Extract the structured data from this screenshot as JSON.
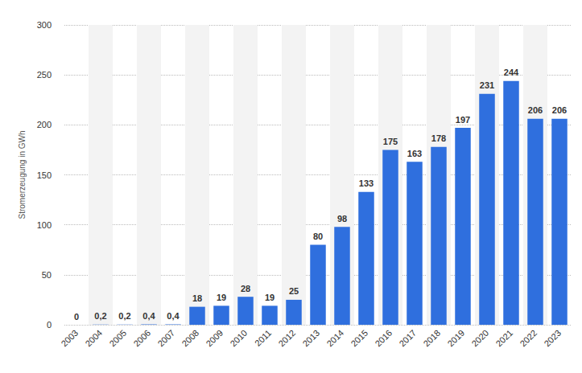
{
  "chart_data": {
    "type": "bar",
    "categories": [
      "2003",
      "2004",
      "2005",
      "2006",
      "2007",
      "2008",
      "2009",
      "2010",
      "2011",
      "2012",
      "2013",
      "2014",
      "2015",
      "2016",
      "2017",
      "2018",
      "2019",
      "2020",
      "2021",
      "2022",
      "2023"
    ],
    "values": [
      0,
      0.2,
      0.2,
      0.4,
      0.4,
      18,
      19,
      28,
      19,
      25,
      80,
      98,
      133,
      175,
      163,
      178,
      197,
      231,
      244,
      206,
      206
    ],
    "value_labels": [
      "0",
      "0,2",
      "0,2",
      "0,4",
      "0,4",
      "18",
      "19",
      "28",
      "19",
      "25",
      "80",
      "98",
      "133",
      "175",
      "163",
      "178",
      "197",
      "231",
      "244",
      "206",
      "206"
    ],
    "color": "#2f6fde",
    "ylabel": "Stromerzeugung in GWh",
    "ylim": [
      0,
      300
    ],
    "yticks": [
      0,
      50,
      100,
      150,
      200,
      250,
      300
    ],
    "grid": true,
    "data_labels": true
  }
}
